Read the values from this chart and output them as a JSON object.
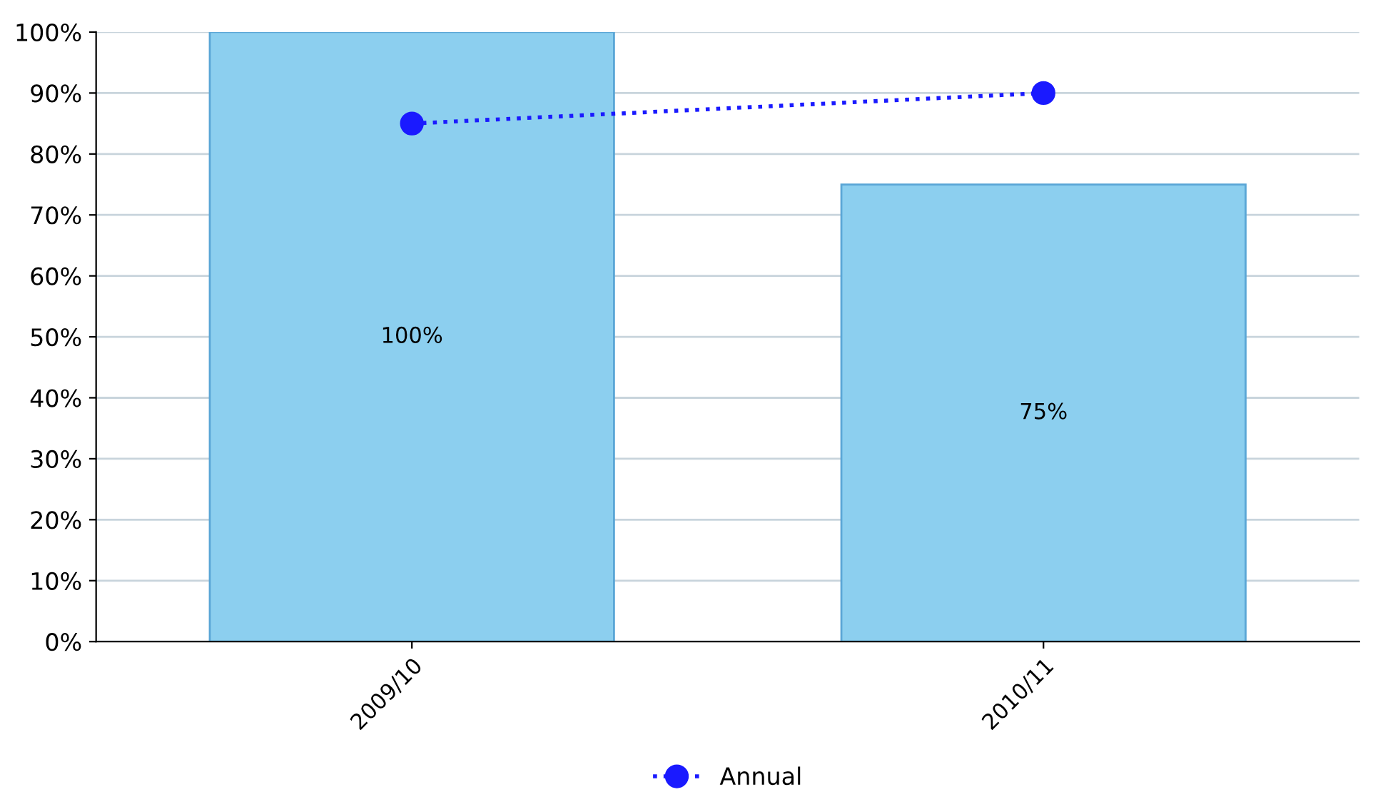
{
  "chart_data": {
    "type": "bar",
    "categories": [
      "2009/10",
      "2010/11"
    ],
    "series": [
      {
        "color": "#8ccfef",
        "values": [
          100,
          75
        ],
        "value_labels": [
          "100%",
          "75%"
        ]
      },
      {
        "type": "line",
        "name": "Annual",
        "color": "#1a1aff",
        "values": [
          85,
          90
        ],
        "marker": "circle",
        "line_style": "dotted"
      }
    ],
    "ylim": [
      0,
      100
    ],
    "yticks": [
      {
        "value": 0,
        "label": "0%"
      },
      {
        "value": 10,
        "label": "10%"
      },
      {
        "value": 20,
        "label": "20%"
      },
      {
        "value": 30,
        "label": "30%"
      },
      {
        "value": 40,
        "label": "40%"
      },
      {
        "value": 50,
        "label": "50%"
      },
      {
        "value": 60,
        "label": "60%"
      },
      {
        "value": 70,
        "label": "70%"
      },
      {
        "value": 80,
        "label": "80%"
      },
      {
        "value": 90,
        "label": "90%"
      },
      {
        "value": 100,
        "label": "100%"
      }
    ],
    "grid": "y",
    "legend": "bottom"
  }
}
